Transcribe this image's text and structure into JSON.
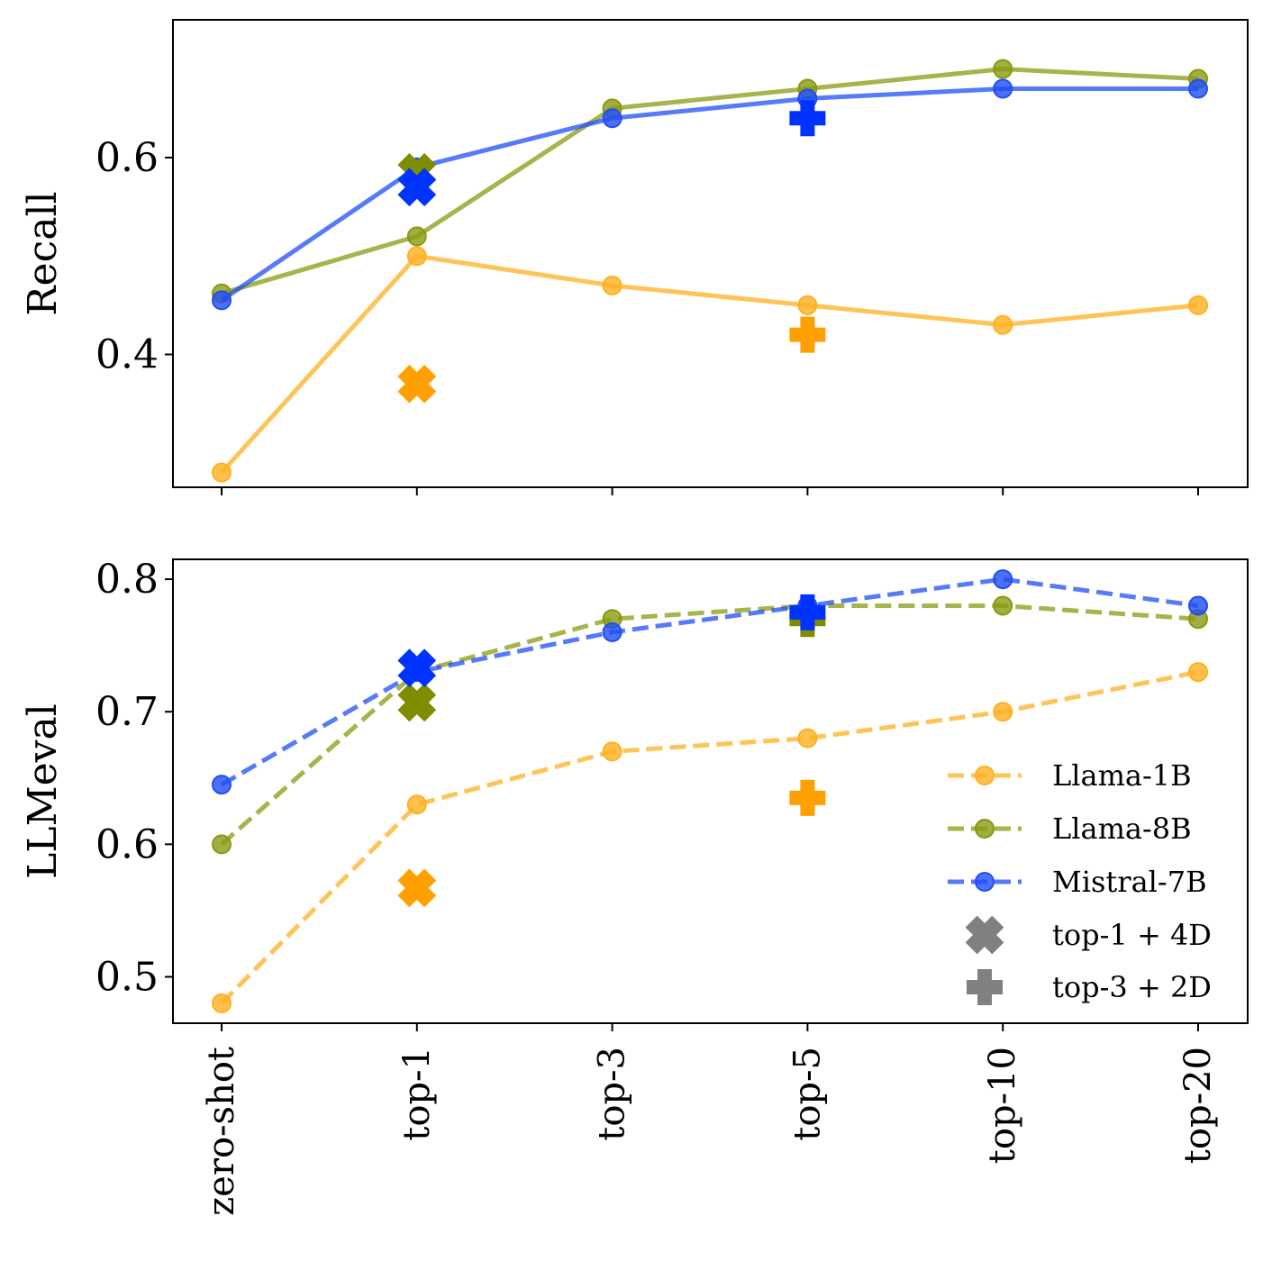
{
  "chart_data": {
    "type": "line",
    "categories": [
      "zero-shot",
      "top-1",
      "top-3",
      "top-5",
      "top-10",
      "top-20"
    ],
    "colors": {
      "Llama-1B": "#ffb020",
      "Llama-8B": "#8a9a10",
      "Mistral-7B": "#1f4ef5",
      "marker_llama1b": "#ffa000",
      "marker_llama8b": "#808c00",
      "marker_mistral": "#0033ff",
      "legend_marker": "#808080"
    },
    "legend": {
      "placement": "lower-right",
      "entries": [
        "Llama-1B",
        "Llama-8B",
        "Mistral-7B",
        "top-1 + 4D",
        "top-3 + 2D"
      ]
    },
    "panels": [
      {
        "id": "recall",
        "ylabel": "Recall",
        "ylim": [
          0.265,
          0.74
        ],
        "yticks": [
          0.4,
          0.6
        ],
        "ytick_labels": [
          "0.4",
          "0.6"
        ],
        "line_style": "solid",
        "series": [
          {
            "name": "Llama-1B",
            "values": [
              0.28,
              0.5,
              0.47,
              0.45,
              0.43,
              0.45
            ]
          },
          {
            "name": "Llama-8B",
            "values": [
              0.462,
              0.52,
              0.65,
              0.67,
              0.69,
              0.68
            ]
          },
          {
            "name": "Mistral-7B",
            "values": [
              0.455,
              0.59,
              0.64,
              0.66,
              0.67,
              0.67
            ]
          }
        ],
        "markers": [
          {
            "series": "Llama-1B",
            "kind": "top-1 + 4D",
            "category": "top-1",
            "value": 0.37
          },
          {
            "series": "Llama-8B",
            "kind": "top-1 + 4D",
            "category": "top-1",
            "value": 0.585
          },
          {
            "series": "Mistral-7B",
            "kind": "top-1 + 4D",
            "category": "top-1",
            "value": 0.57
          },
          {
            "series": "Llama-1B",
            "kind": "top-3 + 2D",
            "category": "top-5",
            "value": 0.42
          },
          {
            "series": "Mistral-7B",
            "kind": "top-3 + 2D",
            "category": "top-5",
            "value": 0.64
          }
        ]
      },
      {
        "id": "llmeval",
        "ylabel": "LLMeval",
        "ylim": [
          0.465,
          0.815
        ],
        "yticks": [
          0.5,
          0.6,
          0.7,
          0.8
        ],
        "ytick_labels": [
          "0.5",
          "0.6",
          "0.7",
          "0.8"
        ],
        "line_style": "dashed",
        "series": [
          {
            "name": "Llama-1B",
            "values": [
              0.48,
              0.63,
              0.67,
              0.68,
              0.7,
              0.73
            ]
          },
          {
            "name": "Llama-8B",
            "values": [
              0.6,
              0.73,
              0.77,
              0.78,
              0.78,
              0.77
            ]
          },
          {
            "name": "Mistral-7B",
            "values": [
              0.645,
              0.73,
              0.76,
              0.78,
              0.8,
              0.78
            ]
          }
        ],
        "markers": [
          {
            "series": "Llama-1B",
            "kind": "top-1 + 4D",
            "category": "top-1",
            "value": 0.567
          },
          {
            "series": "Llama-8B",
            "kind": "top-1 + 4D",
            "category": "top-1",
            "value": 0.707
          },
          {
            "series": "Mistral-7B",
            "kind": "top-1 + 4D",
            "category": "top-1",
            "value": 0.733
          },
          {
            "series": "Llama-1B",
            "kind": "top-3 + 2D",
            "category": "top-5",
            "value": 0.635
          },
          {
            "series": "Llama-8B",
            "kind": "top-3 + 2D",
            "category": "top-5",
            "value": 0.77
          },
          {
            "series": "Mistral-7B",
            "kind": "top-3 + 2D",
            "category": "top-5",
            "value": 0.775
          }
        ]
      }
    ]
  }
}
